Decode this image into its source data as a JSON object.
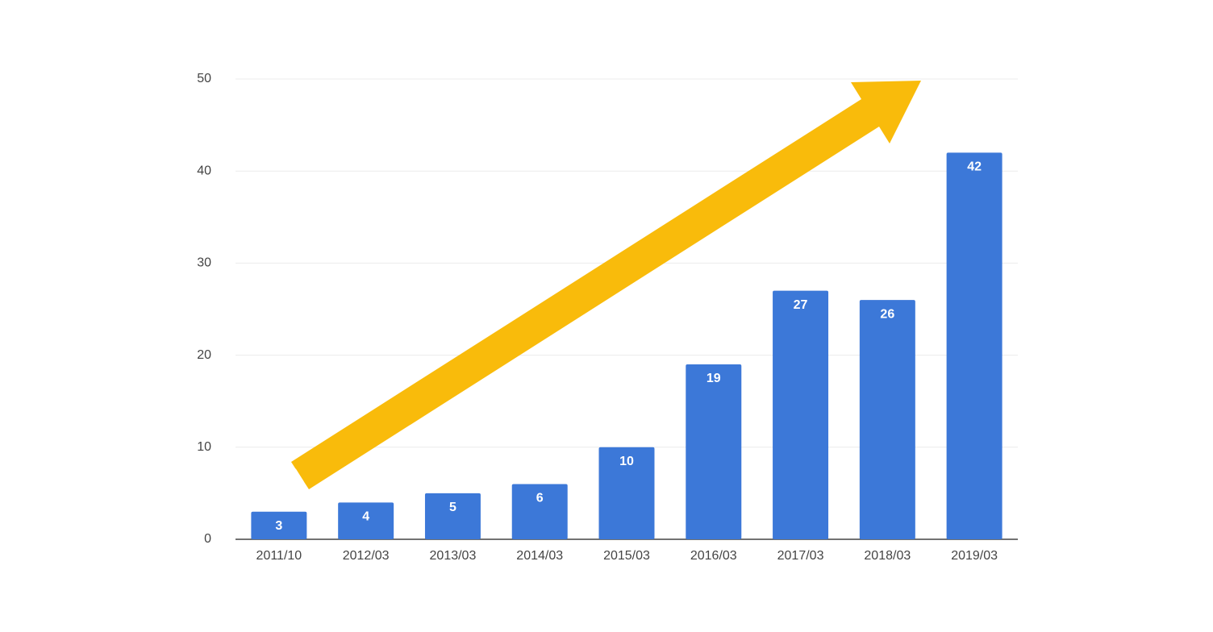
{
  "chart_data": {
    "type": "bar",
    "categories": [
      "2011/10",
      "2012/03",
      "2013/03",
      "2014/03",
      "2015/03",
      "2016/03",
      "2017/03",
      "2018/03",
      "2019/03"
    ],
    "values": [
      3,
      4,
      5,
      6,
      10,
      19,
      27,
      26,
      42
    ],
    "color": "#3c78d8",
    "ylim": [
      0,
      50
    ],
    "yticks": [
      0,
      10,
      20,
      30,
      40,
      50
    ],
    "grid": true
  }
}
